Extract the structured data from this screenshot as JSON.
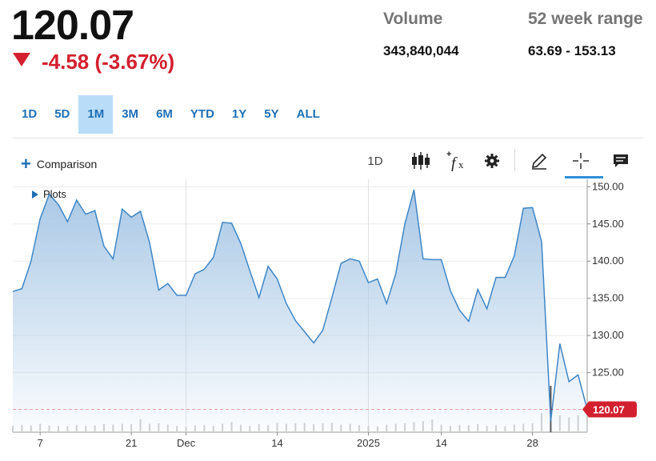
{
  "quote": {
    "price": "120.07",
    "change": "-4.58 (-3.67%)",
    "volume_label": "Volume",
    "volume_value": "343,840,044",
    "range_label": "52 week range",
    "range_value": "63.69 - 153.13",
    "down_color": "#d3202f"
  },
  "ranges": [
    "1D",
    "5D",
    "1M",
    "3M",
    "6M",
    "YTD",
    "1Y",
    "5Y",
    "ALL"
  ],
  "active_range": "1M",
  "toolbar": {
    "comparison_label": "Comparison",
    "interval_label": "1D",
    "icons": [
      "candlestick-icon",
      "fx-indicator-icon",
      "gear-icon",
      "pencil-icon",
      "crosshair-icon",
      "annotation-icon"
    ],
    "plots_label": "Plots"
  },
  "chart_data": {
    "type": "area",
    "ylim": [
      117,
      151
    ],
    "y_ticks": [
      150,
      145,
      140,
      135,
      130,
      125
    ],
    "x_tick_labels": [
      {
        "label": "7",
        "index": 3
      },
      {
        "label": "21",
        "index": 13
      },
      {
        "label": "Dec",
        "index": 19
      },
      {
        "label": "14",
        "index": 29
      },
      {
        "label": "2025",
        "index": 39
      },
      {
        "label": "14",
        "index": 47
      },
      {
        "label": "28",
        "index": 57
      }
    ],
    "gridline_indices": [
      19,
      39
    ],
    "close": [
      135.9,
      136.3,
      140.0,
      145.7,
      149.0,
      147.6,
      145.3,
      148.2,
      146.3,
      146.8,
      142.0,
      140.3,
      147.0,
      145.9,
      146.7,
      142.5,
      136.1,
      137.0,
      135.4,
      135.4,
      138.3,
      138.9,
      140.5,
      145.2,
      145.1,
      142.4,
      138.7,
      135.1,
      139.3,
      137.6,
      134.3,
      132.0,
      130.5,
      129.0,
      130.7,
      135.1,
      139.7,
      140.3,
      140.0,
      137.1,
      137.6,
      134.3,
      138.3,
      145.0,
      149.6,
      140.3,
      140.2,
      140.2,
      136.0,
      133.4,
      131.9,
      136.2,
      133.6,
      137.8,
      137.8,
      140.7,
      147.1,
      147.2,
      142.6,
      118.5,
      128.9,
      123.8,
      124.7,
      120.07
    ],
    "volume": [
      0.3,
      0.35,
      0.32,
      0.4,
      0.33,
      0.3,
      0.28,
      0.35,
      0.3,
      0.32,
      0.38,
      0.36,
      0.4,
      0.38,
      0.62,
      0.4,
      0.42,
      0.36,
      0.3,
      0.25,
      0.32,
      0.35,
      0.3,
      0.4,
      0.48,
      0.35,
      0.3,
      0.38,
      0.34,
      0.44,
      0.4,
      0.42,
      0.44,
      0.38,
      0.42,
      0.44,
      0.36,
      0.4,
      0.34,
      0.3,
      0.28,
      0.35,
      0.4,
      0.42,
      0.48,
      0.52,
      0.6,
      0.36,
      0.3,
      0.34,
      0.34,
      0.38,
      0.3,
      0.34,
      0.28,
      0.36,
      0.4,
      0.42,
      0.9,
      2.2,
      0.8,
      0.7,
      0.8,
      0.55
    ],
    "last_label": "120.07",
    "line_color": "#3f86c5",
    "fill_color": "#a9c8e6",
    "last_badge_color": "#d3202f",
    "volume_color": "#d0d0d0"
  }
}
